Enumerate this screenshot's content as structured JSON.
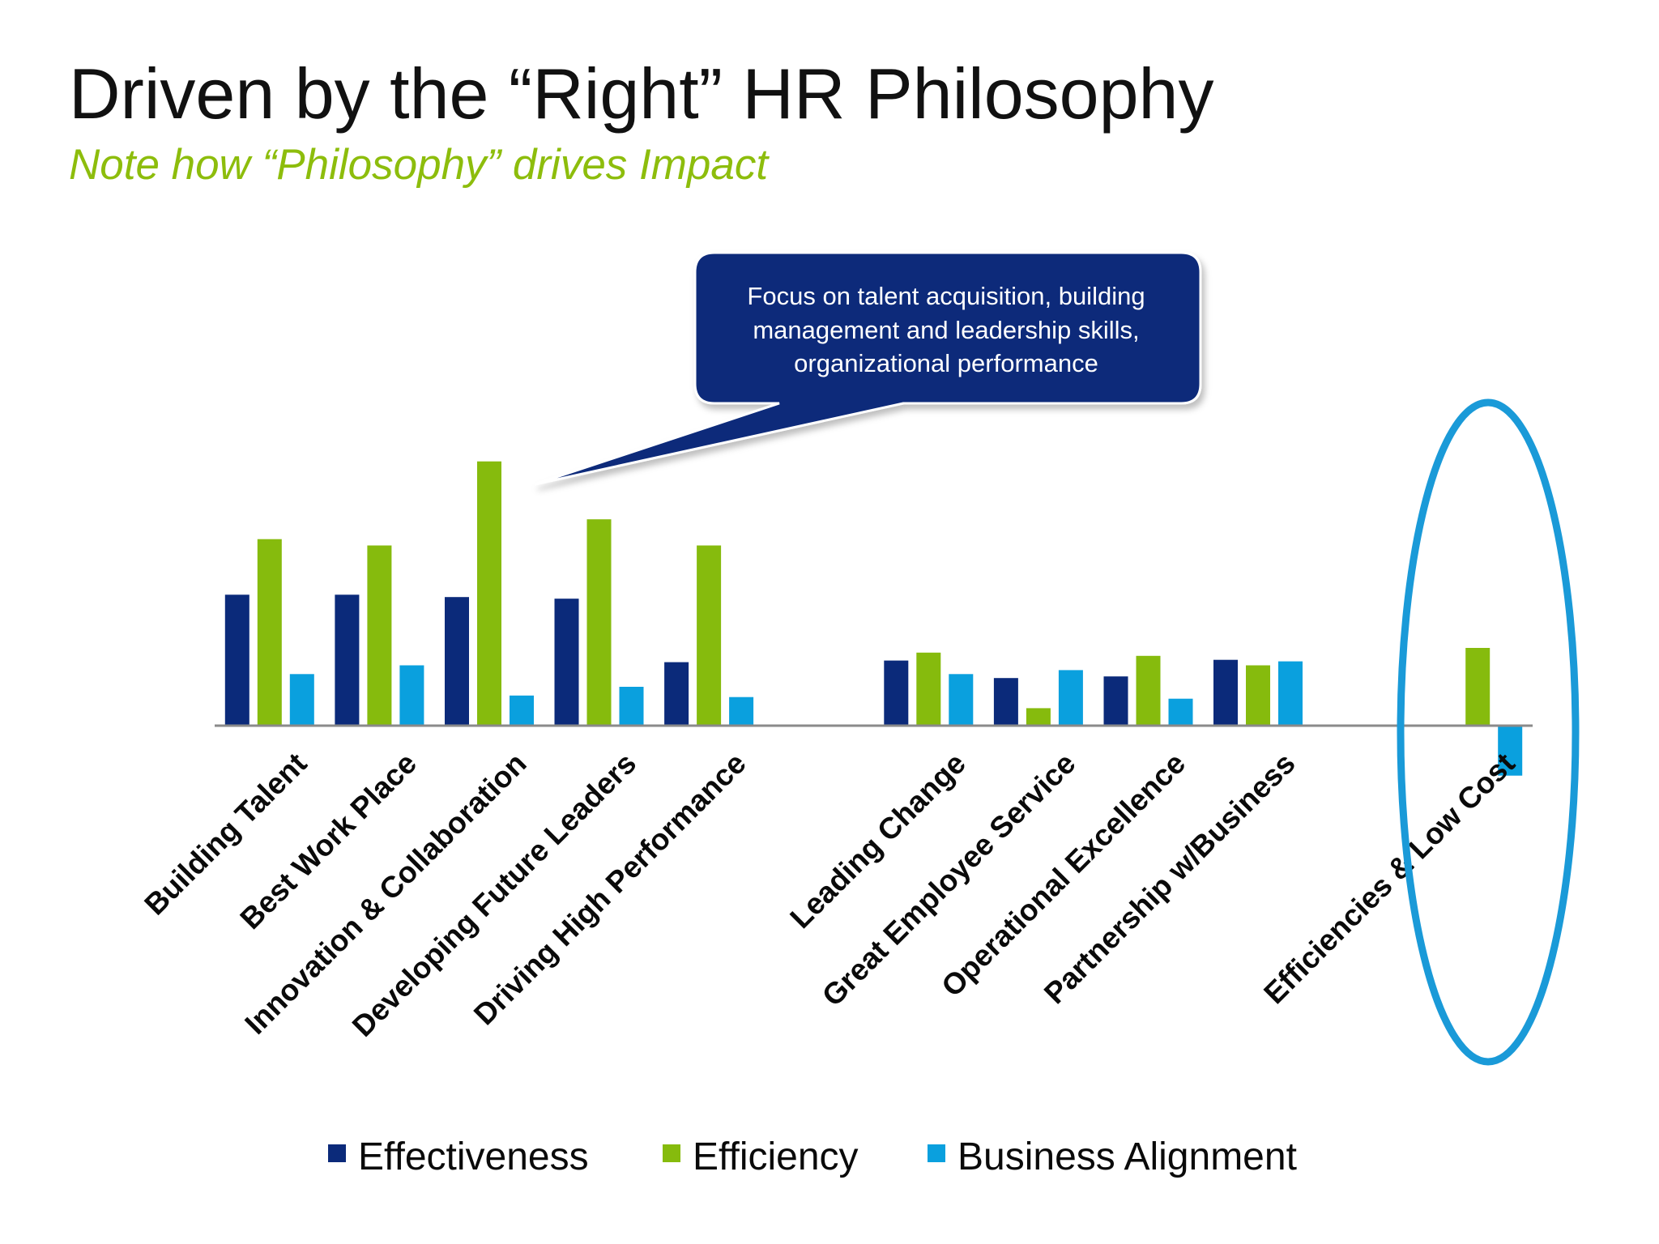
{
  "slide": {
    "title": "Driven by the “Right” HR Philosophy",
    "subtitle": "Note how “Philosophy” drives Impact"
  },
  "callout": {
    "lines": [
      "Focus on talent acquisition, building",
      "management and leadership skills,",
      "organizational performance"
    ],
    "fill": "#0b2a7a"
  },
  "highlight": {
    "target": "Efficiencies & Low Cost",
    "color": "#1a9ad8"
  },
  "chart_data": {
    "type": "bar",
    "categories": [
      "Building Talent",
      "Best Work Place",
      "Innovation & Collaboration",
      "Developing Future Leaders",
      "Driving High Performance",
      "",
      "Leading Change",
      "Great Employee Service",
      "Operational Excellence",
      "Partnership w/Business",
      "",
      "Efficiencies & Low Cost"
    ],
    "series": [
      {
        "name": "Effectiveness",
        "color": "#0b2a7a",
        "values": [
          1.65,
          1.65,
          1.62,
          1.6,
          0.8,
          null,
          0.82,
          0.6,
          0.62,
          0.83,
          null,
          0
        ]
      },
      {
        "name": "Efficiency",
        "color": "#86bb0d",
        "values": [
          2.35,
          2.27,
          3.33,
          2.6,
          2.27,
          null,
          0.92,
          0.22,
          0.88,
          0.76,
          null,
          0.98
        ]
      },
      {
        "name": "Business Alignment",
        "color": "#0aa0de",
        "values": [
          0.65,
          0.76,
          0.38,
          0.49,
          0.36,
          null,
          0.65,
          0.7,
          0.34,
          0.81,
          null,
          -0.63
        ]
      }
    ],
    "ylim": [
      -1.0,
      3.4
    ],
    "grid": false,
    "y_axis_visible": false,
    "legend": "bottom"
  }
}
